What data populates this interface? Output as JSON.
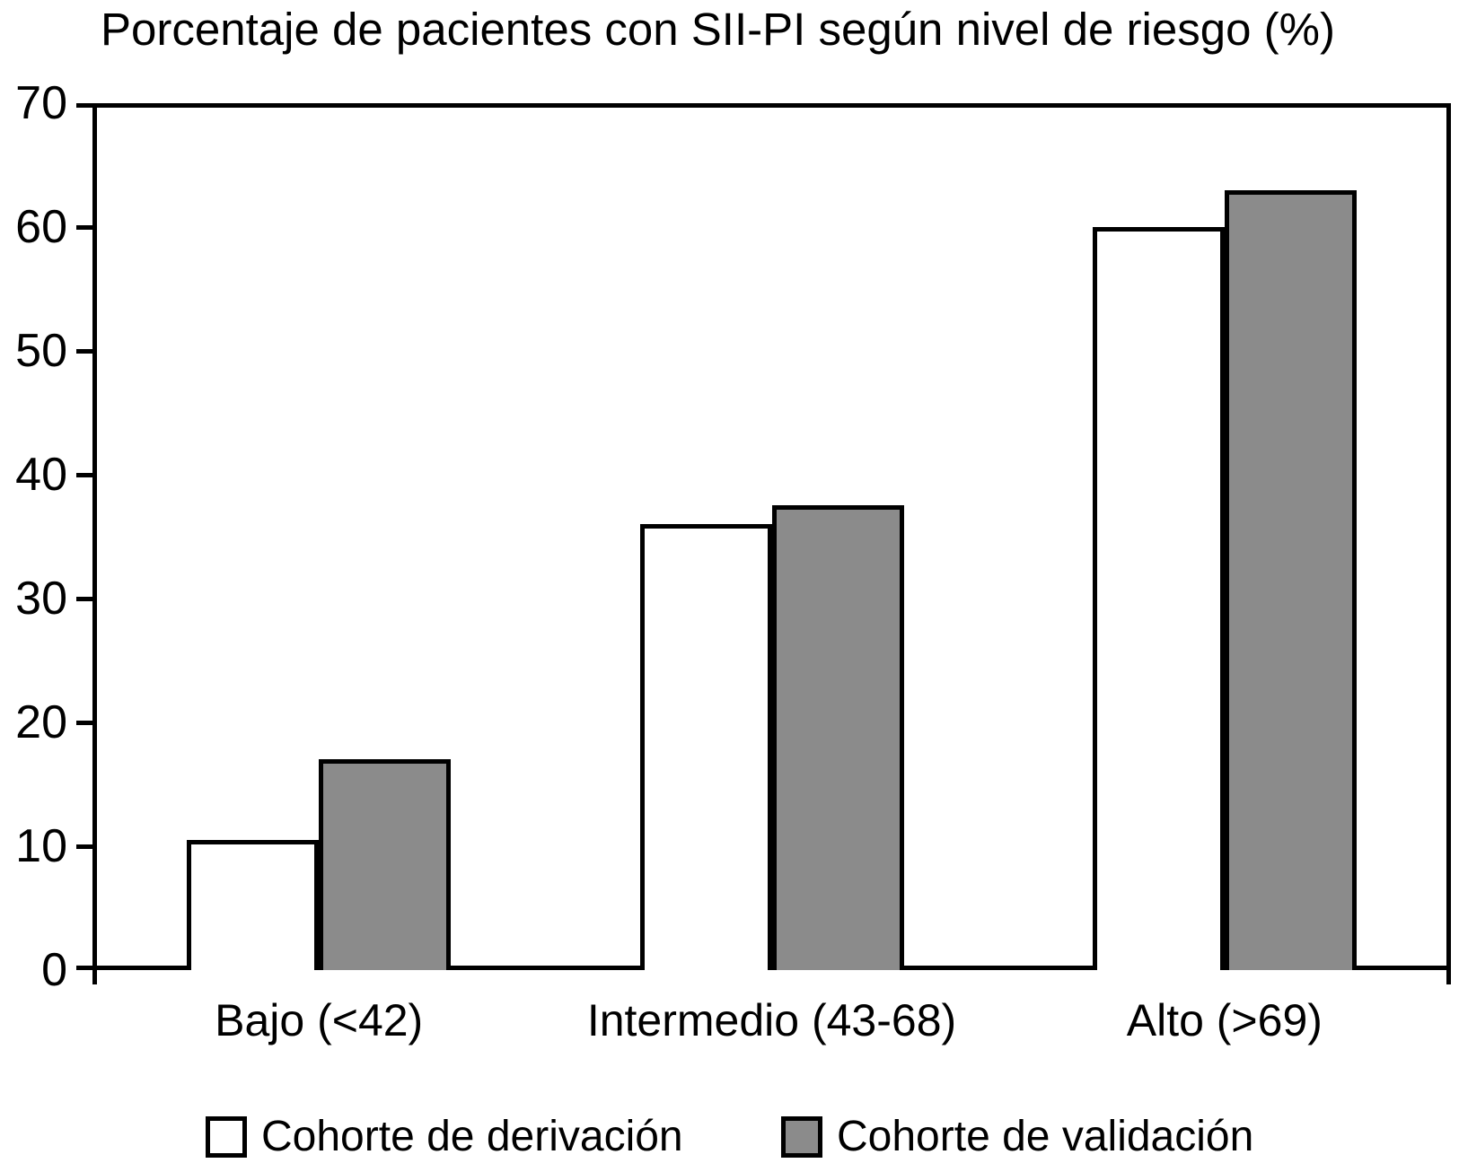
{
  "title": "Porcentaje de pacientes con SII-PI según nivel de riesgo (%)",
  "colors": {
    "stroke": "#000000",
    "background": "#FFFFFF",
    "derivation_fill": "#FFFFFF",
    "validation_fill": "#8B8B8B"
  },
  "chart_data": {
    "type": "bar",
    "title": "Porcentaje de pacientes con SII-PI según nivel de riesgo (%)",
    "categories": [
      "Bajo (<42)",
      "Intermedio (43-68)",
      "Alto (>69)"
    ],
    "series": [
      {
        "name": "Cohorte de derivación",
        "fill": "#FFFFFF",
        "values": [
          10.5,
          36,
          60
        ]
      },
      {
        "name": "Cohorte de validación",
        "fill": "#8B8B8B",
        "values": [
          17,
          37.5,
          63
        ]
      }
    ],
    "xlabel": "",
    "ylabel": "",
    "ylim": [
      0,
      70
    ],
    "yticks": [
      0,
      10,
      20,
      30,
      40,
      50,
      60,
      70
    ],
    "grid": false,
    "legend_position": "bottom"
  },
  "legend": {
    "items": [
      {
        "label": "Cohorte de derivación",
        "fill": "#FFFFFF"
      },
      {
        "label": "Cohorte de validación",
        "fill": "#8B8B8B"
      }
    ]
  }
}
